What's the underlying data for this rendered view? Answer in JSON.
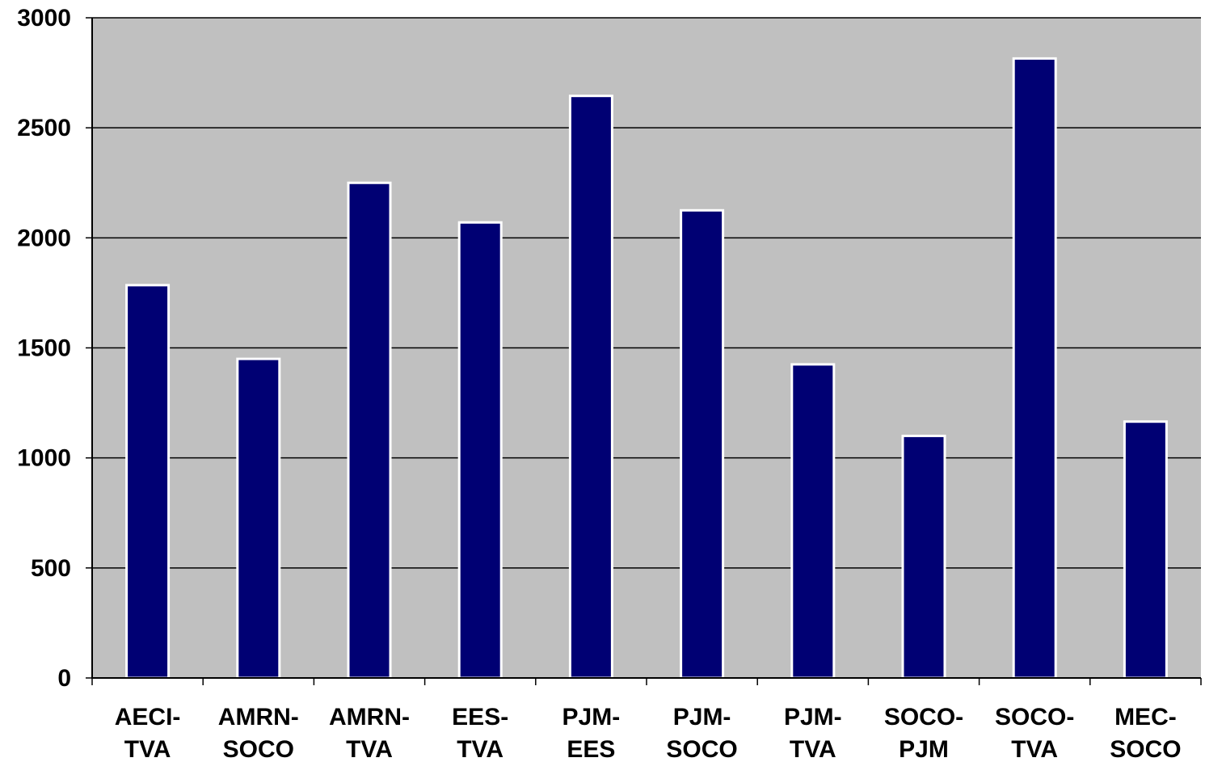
{
  "chart_data": {
    "type": "bar",
    "categories": [
      [
        "AECI-",
        "TVA"
      ],
      [
        "AMRN-",
        "SOCO"
      ],
      [
        "AMRN-",
        "TVA"
      ],
      [
        "EES-",
        "TVA"
      ],
      [
        "PJM-",
        "EES"
      ],
      [
        "PJM-",
        "SOCO"
      ],
      [
        "PJM-",
        "TVA"
      ],
      [
        "SOCO-",
        "PJM"
      ],
      [
        "SOCO-",
        "TVA"
      ],
      [
        "MEC-",
        "SOCO"
      ]
    ],
    "values": [
      1785,
      1450,
      2250,
      2070,
      2645,
      2125,
      1425,
      1100,
      2815,
      1165
    ],
    "ylim": [
      0,
      3000
    ],
    "yticks": [
      "0",
      "500",
      "1000",
      "1500",
      "2000",
      "2500",
      "3000"
    ],
    "grid": true,
    "legend": "none",
    "title": "",
    "xlabel": "",
    "ylabel": "",
    "colors": {
      "bar": "#000073",
      "bar_outline": "#ffffff",
      "plot_background": "#c0c0c0",
      "gridline": "#000000",
      "axis": "#000000"
    }
  }
}
